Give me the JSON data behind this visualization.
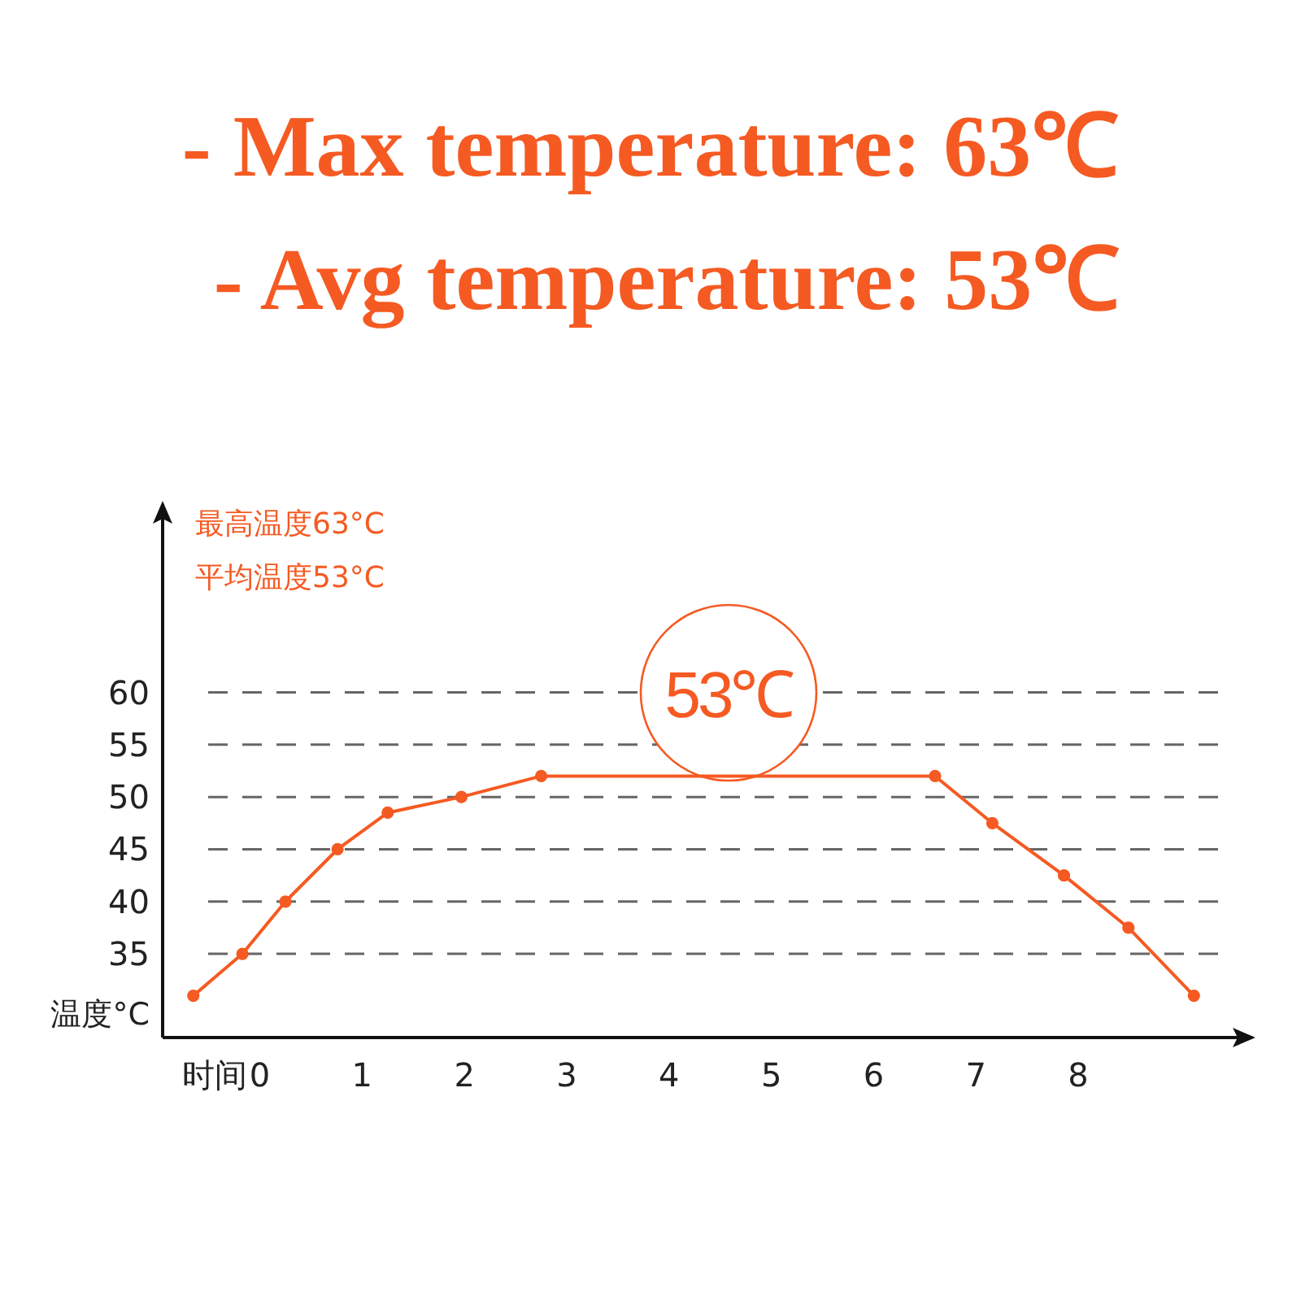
{
  "chart_data": {
    "type": "line",
    "title": "- Max temperature: 63℃",
    "subtitle": "- Avg temperature: 53℃",
    "xlabel": "时间",
    "ylabel": "温度°C",
    "annotations": [
      "最高温度63°C",
      "平均温度53°C",
      "53℃"
    ],
    "x": [
      -0.65,
      -0.17,
      0.25,
      0.76,
      1.25,
      1.97,
      2.75,
      6.6,
      7.16,
      7.86,
      8.49,
      9.13
    ],
    "series": [
      {
        "color": "#f55a22",
        "values": [
          31,
          35,
          40,
          45,
          48.5,
          50,
          52,
          52,
          47.5,
          42.5,
          37.5,
          31
        ]
      }
    ],
    "xlim": [
      -0.95,
      9.7
    ],
    "ylim": [
      27,
      78
    ],
    "xticks": [
      0,
      1,
      2,
      3,
      4,
      5,
      6,
      7,
      8
    ],
    "yticks": [
      35,
      40,
      45,
      50,
      55,
      60
    ],
    "grid": "y",
    "marker": "circle",
    "line_style": "solid"
  }
}
